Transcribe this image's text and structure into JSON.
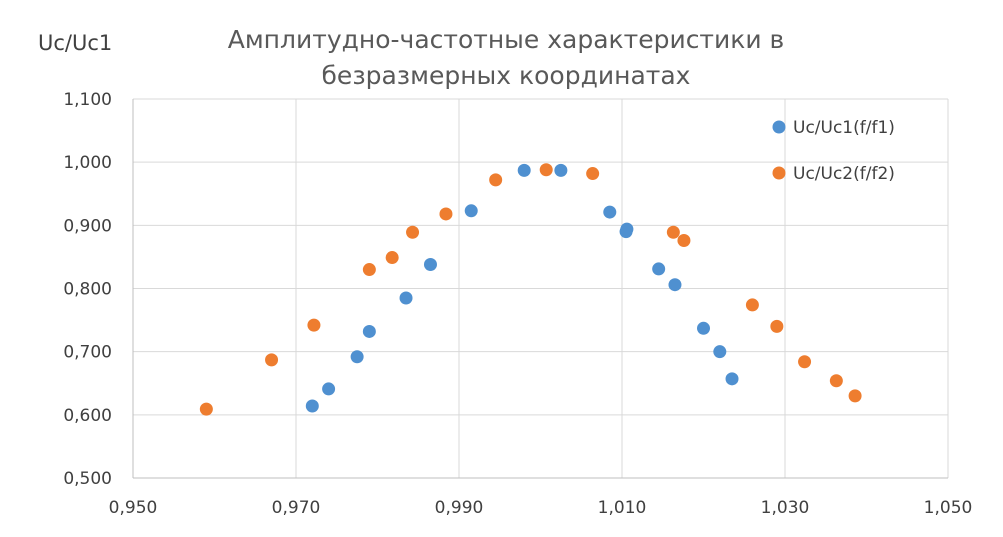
{
  "chart_data": {
    "type": "scatter",
    "title_lines": [
      "Амплитудно-частотные характеристики в",
      "безразмерных координатах"
    ],
    "ylabel": "Uc/Uc1",
    "xlabel": "",
    "xlim": [
      0.95,
      1.05
    ],
    "ylim": [
      0.5,
      1.1
    ],
    "xticks": [
      "0,950",
      "0,970",
      "0,990",
      "1,010",
      "1,030",
      "1,050"
    ],
    "yticks": [
      "0,500",
      "0,600",
      "0,700",
      "0,800",
      "0,900",
      "1,000",
      "1,100"
    ],
    "grid": true,
    "legend_position": "top-right",
    "colors": {
      "series1": "#4f90d0",
      "series2": "#ee7d2f"
    },
    "series": [
      {
        "name": "Uc/Uc1(f/f1)",
        "points": [
          [
            0.972,
            0.614
          ],
          [
            0.974,
            0.641
          ],
          [
            0.9775,
            0.692
          ],
          [
            0.979,
            0.732
          ],
          [
            0.9835,
            0.785
          ],
          [
            0.9865,
            0.838
          ],
          [
            0.9915,
            0.923
          ],
          [
            0.998,
            0.987
          ],
          [
            1.0025,
            0.987
          ],
          [
            1.0085,
            0.921
          ],
          [
            1.0105,
            0.89
          ],
          [
            1.0106,
            0.894
          ],
          [
            1.0145,
            0.831
          ],
          [
            1.0165,
            0.806
          ],
          [
            1.02,
            0.737
          ],
          [
            1.022,
            0.7
          ],
          [
            1.0235,
            0.657
          ]
        ]
      },
      {
        "name": "Uc/Uc2(f/f2)",
        "points": [
          [
            0.959,
            0.609
          ],
          [
            0.967,
            0.687
          ],
          [
            0.9722,
            0.742
          ],
          [
            0.979,
            0.83
          ],
          [
            0.9818,
            0.849
          ],
          [
            0.9843,
            0.889
          ],
          [
            0.9884,
            0.918
          ],
          [
            0.9945,
            0.972
          ],
          [
            1.0007,
            0.988
          ],
          [
            1.0064,
            0.982
          ],
          [
            1.0163,
            0.889
          ],
          [
            1.0176,
            0.876
          ],
          [
            1.026,
            0.774
          ],
          [
            1.029,
            0.74
          ],
          [
            1.0324,
            0.684
          ],
          [
            1.0363,
            0.654
          ],
          [
            1.0386,
            0.63
          ]
        ]
      }
    ]
  }
}
